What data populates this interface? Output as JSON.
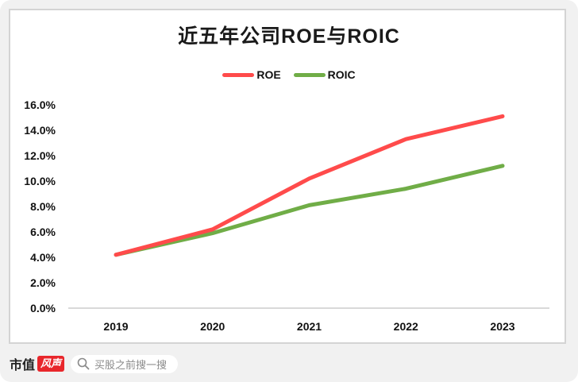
{
  "chart_data": {
    "type": "line",
    "title": "近五年公司ROE与ROIC",
    "categories": [
      "2019",
      "2020",
      "2021",
      "2022",
      "2023"
    ],
    "series": [
      {
        "name": "ROE",
        "color": "#ff4b4b",
        "values": [
          4.2,
          6.2,
          10.2,
          13.3,
          15.1
        ]
      },
      {
        "name": "ROIC",
        "color": "#70ad47",
        "values": [
          4.2,
          5.9,
          8.1,
          9.4,
          11.2
        ]
      }
    ],
    "xlabel": "",
    "ylabel": "",
    "ylim": [
      0,
      16
    ],
    "yticks": [
      "0.0%",
      "2.0%",
      "4.0%",
      "6.0%",
      "8.0%",
      "10.0%",
      "12.0%",
      "14.0%",
      "16.0%"
    ],
    "grid": false,
    "legend_position": "top"
  },
  "legend": {
    "items": [
      {
        "label": "ROE",
        "color": "#ff4b4b"
      },
      {
        "label": "ROIC",
        "color": "#70ad47"
      }
    ]
  },
  "footer": {
    "brand_text": "市值",
    "brand_badge": "风声",
    "search_placeholder": "买股之前搜一搜"
  }
}
